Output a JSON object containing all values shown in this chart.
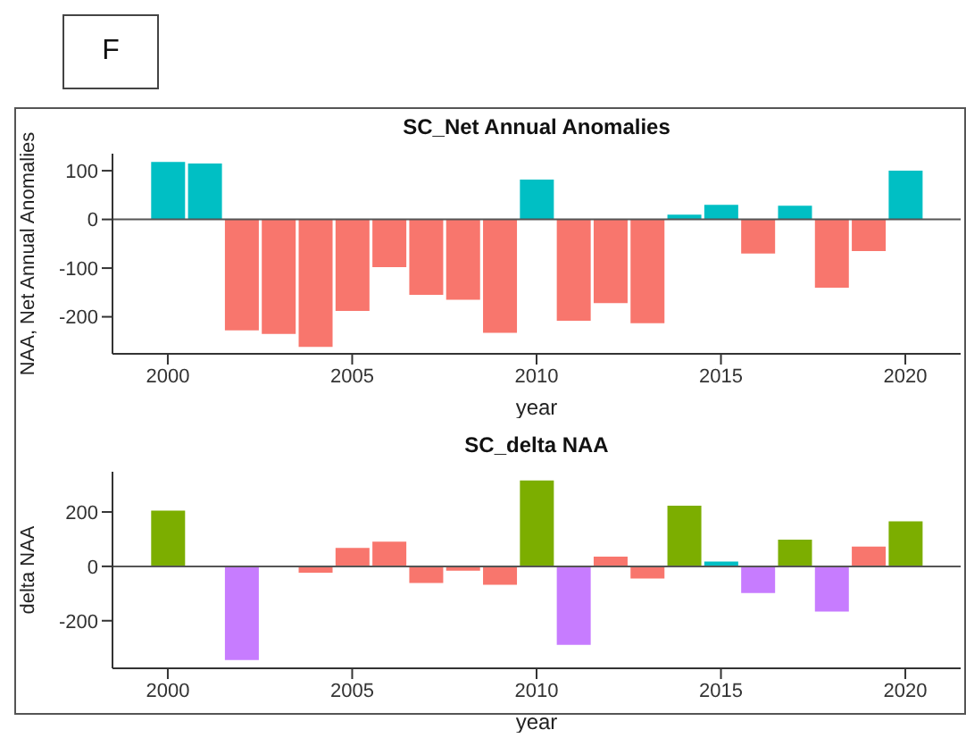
{
  "chart_data": [
    {
      "type": "bar",
      "title": "SC_Net Annual Anomalies",
      "xlabel": "year",
      "ylabel": "NAA, Net Annual Anomalies",
      "annotations": [
        "F"
      ],
      "x": [
        2000,
        2001,
        2002,
        2003,
        2004,
        2005,
        2006,
        2007,
        2008,
        2009,
        2010,
        2011,
        2012,
        2013,
        2014,
        2015,
        2016,
        2017,
        2018,
        2019,
        2020
      ],
      "values": [
        118,
        115,
        -228,
        -235,
        -262,
        -188,
        -98,
        -155,
        -165,
        -233,
        82,
        -208,
        -172,
        -213,
        10,
        30,
        -70,
        28,
        -140,
        -65,
        100
      ],
      "colors": [
        "#00bfc4",
        "#00bfc4",
        "#f8766d",
        "#f8766d",
        "#f8766d",
        "#f8766d",
        "#f8766d",
        "#f8766d",
        "#f8766d",
        "#f8766d",
        "#00bfc4",
        "#f8766d",
        "#f8766d",
        "#f8766d",
        "#00bfc4",
        "#00bfc4",
        "#f8766d",
        "#00bfc4",
        "#f8766d",
        "#f8766d",
        "#00bfc4"
      ],
      "xlim": [
        1998.5,
        2021.5
      ],
      "xticks": [
        2000,
        2005,
        2010,
        2015,
        2020
      ],
      "ylim": [
        -276,
        135
      ],
      "yticks": [
        -200,
        -100,
        0,
        100
      ],
      "ref_lines": [
        {
          "axis": "y",
          "value": 0,
          "color": "#555555"
        }
      ],
      "grid": false,
      "legend": false
    },
    {
      "type": "bar",
      "title": "SC_delta NAA",
      "xlabel": "year",
      "ylabel": "delta NAA",
      "x": [
        2000,
        2001,
        2002,
        2003,
        2004,
        2005,
        2006,
        2007,
        2008,
        2009,
        2010,
        2011,
        2012,
        2013,
        2014,
        2015,
        2016,
        2017,
        2018,
        2019,
        2020
      ],
      "values": [
        205,
        null,
        -345,
        null,
        -23,
        68,
        91,
        -61,
        -16,
        -68,
        316,
        -289,
        36,
        -45,
        223,
        18,
        -98,
        98,
        -166,
        73,
        166
      ],
      "colors": [
        "#7cae00",
        null,
        "#c77cff",
        null,
        "#f8766d",
        "#f8766d",
        "#f8766d",
        "#f8766d",
        "#f8766d",
        "#f8766d",
        "#7cae00",
        "#c77cff",
        "#f8766d",
        "#f8766d",
        "#7cae00",
        "#00bfc4",
        "#c77cff",
        "#7cae00",
        "#c77cff",
        "#f8766d",
        "#7cae00"
      ],
      "xlim": [
        1998.5,
        2021.5
      ],
      "xticks": [
        2000,
        2005,
        2010,
        2015,
        2020
      ],
      "ylim": [
        -375,
        348
      ],
      "yticks": [
        -200,
        0,
        200
      ],
      "ref_lines": [
        {
          "axis": "y",
          "value": 0,
          "color": "#555555"
        }
      ],
      "grid": false,
      "legend": false
    }
  ]
}
